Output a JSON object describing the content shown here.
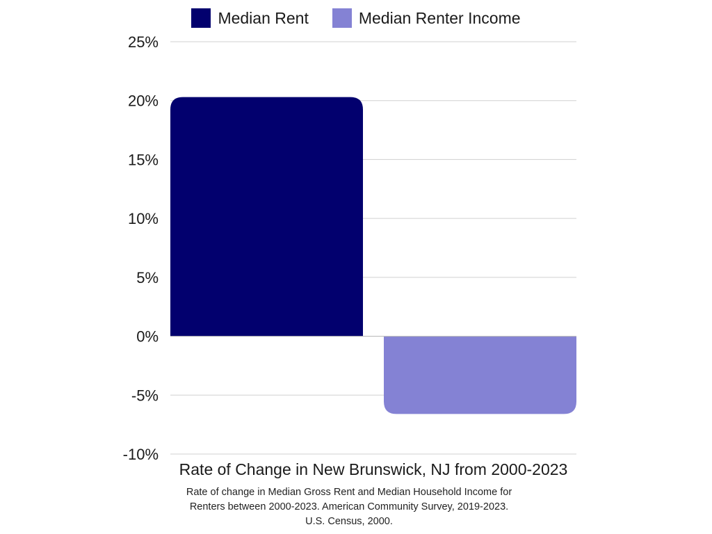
{
  "chart_data": {
    "type": "bar",
    "categories": [
      "Median Rent",
      "Median Renter Income"
    ],
    "values": [
      20.3,
      -6.6
    ],
    "colors": [
      "#02006e",
      "#8482d4"
    ],
    "xlabel": "Rate of Change in New Brunswick, NJ from 2000-2023",
    "ylabel": "",
    "ylim": [
      -10,
      25
    ],
    "yticks": [
      25,
      20,
      15,
      10,
      5,
      0,
      -5,
      -10
    ],
    "ytick_labels": [
      "25%",
      "20%",
      "15%",
      "10%",
      "5%",
      "0%",
      "-5%",
      "-10%"
    ],
    "grid": true,
    "legend_position": "top-center"
  },
  "legend": [
    {
      "label": "Median Rent",
      "color": "#02006e"
    },
    {
      "label": "Median Renter Income",
      "color": "#8482d4"
    }
  ],
  "caption": "Rate of change in Median Gross Rent and Median Household Income for Renters between 2000-2023. American Community Survey, 2019-2023. U.S. Census, 2000."
}
